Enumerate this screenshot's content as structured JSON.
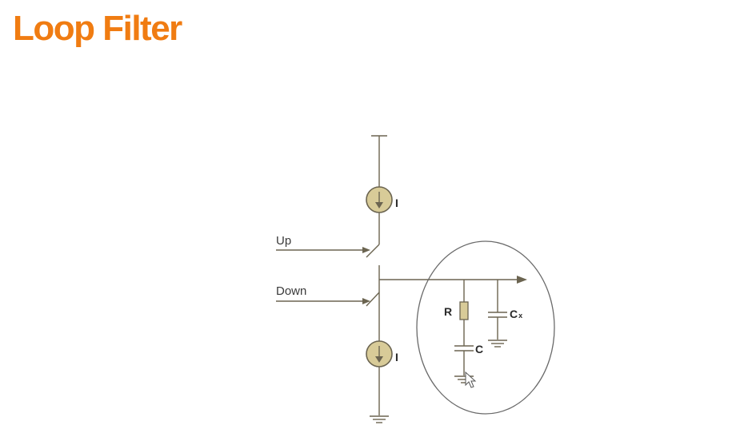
{
  "slide": {
    "title": "Loop Filter",
    "accent_color": "#f07c12"
  },
  "diagram": {
    "labels": {
      "up": "Up",
      "down": "Down",
      "current_top": "I",
      "current_bottom": "I",
      "resistor": "R",
      "capacitor": "C",
      "capacitor_x_main": "C",
      "capacitor_x_sub": "x"
    },
    "component_color": "#d8cb98",
    "wire_color": "#6b6450"
  }
}
